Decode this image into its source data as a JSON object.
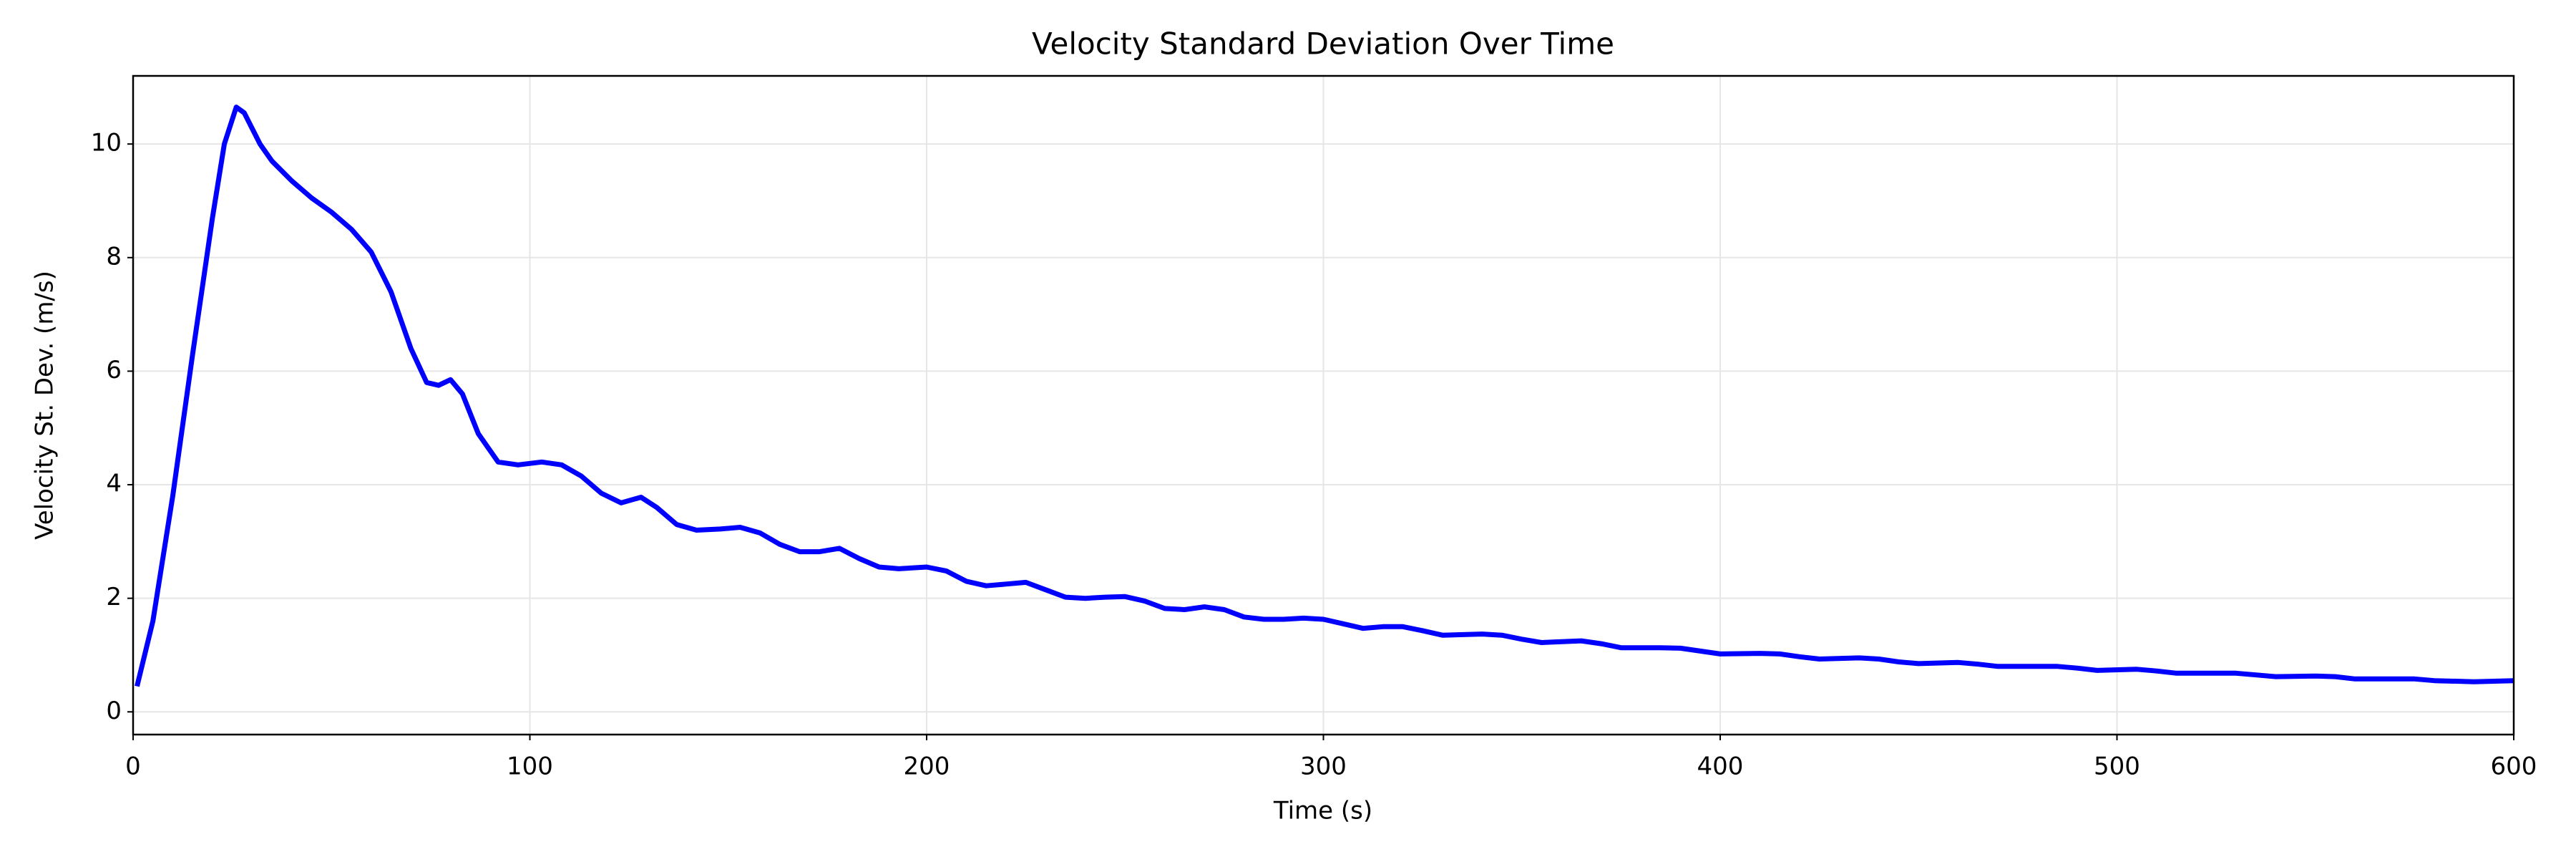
{
  "chart_data": {
    "type": "line",
    "title": "Velocity Standard Deviation Over Time",
    "xlabel": "Time (s)",
    "ylabel": "Velocity St. Dev. (m/s)",
    "x": [
      1,
      5,
      10,
      15,
      20,
      23,
      26,
      28,
      32,
      35,
      40,
      45,
      50,
      55,
      60,
      65,
      70,
      74,
      77,
      80,
      83,
      87,
      92,
      97,
      103,
      108,
      113,
      118,
      123,
      128,
      132,
      137,
      142,
      148,
      153,
      158,
      163,
      168,
      173,
      178,
      183,
      188,
      193,
      200,
      205,
      210,
      215,
      220,
      225,
      230,
      235,
      240,
      245,
      250,
      255,
      260,
      265,
      270,
      275,
      280,
      285,
      290,
      295,
      300,
      305,
      310,
      315,
      320,
      325,
      330,
      340,
      345,
      350,
      355,
      365,
      370,
      375,
      385,
      390,
      395,
      400,
      410,
      415,
      420,
      425,
      435,
      440,
      445,
      450,
      460,
      465,
      470,
      480,
      485,
      490,
      495,
      505,
      510,
      515,
      525,
      530,
      535,
      540,
      550,
      555,
      560,
      570,
      575,
      580,
      590,
      600
    ],
    "values": [
      0.45,
      1.6,
      3.8,
      6.3,
      8.7,
      10.0,
      10.65,
      10.55,
      10.0,
      9.7,
      9.35,
      9.05,
      8.8,
      8.5,
      8.1,
      7.4,
      6.4,
      5.8,
      5.75,
      5.85,
      5.6,
      4.9,
      4.4,
      4.35,
      4.4,
      4.35,
      4.15,
      3.85,
      3.68,
      3.78,
      3.6,
      3.3,
      3.2,
      3.22,
      3.25,
      3.15,
      2.95,
      2.82,
      2.82,
      2.88,
      2.7,
      2.55,
      2.52,
      2.55,
      2.48,
      2.3,
      2.22,
      2.25,
      2.28,
      2.15,
      2.02,
      2.0,
      2.02,
      2.03,
      1.95,
      1.82,
      1.8,
      1.85,
      1.8,
      1.67,
      1.63,
      1.63,
      1.65,
      1.63,
      1.55,
      1.47,
      1.5,
      1.5,
      1.43,
      1.35,
      1.37,
      1.35,
      1.28,
      1.22,
      1.25,
      1.2,
      1.13,
      1.13,
      1.12,
      1.07,
      1.02,
      1.03,
      1.02,
      0.97,
      0.93,
      0.95,
      0.93,
      0.88,
      0.85,
      0.87,
      0.84,
      0.8,
      0.8,
      0.8,
      0.77,
      0.73,
      0.75,
      0.72,
      0.68,
      0.68,
      0.68,
      0.65,
      0.62,
      0.63,
      0.62,
      0.58,
      0.58,
      0.58,
      0.55,
      0.53,
      0.55
    ],
    "color": "#0000ff",
    "xlim": [
      0,
      600
    ],
    "ylim": [
      -0.4,
      11.2
    ],
    "xticks": [
      0,
      100,
      200,
      300,
      400,
      500,
      600
    ],
    "yticks": [
      0,
      2,
      4,
      6,
      8,
      10
    ],
    "grid": true
  }
}
